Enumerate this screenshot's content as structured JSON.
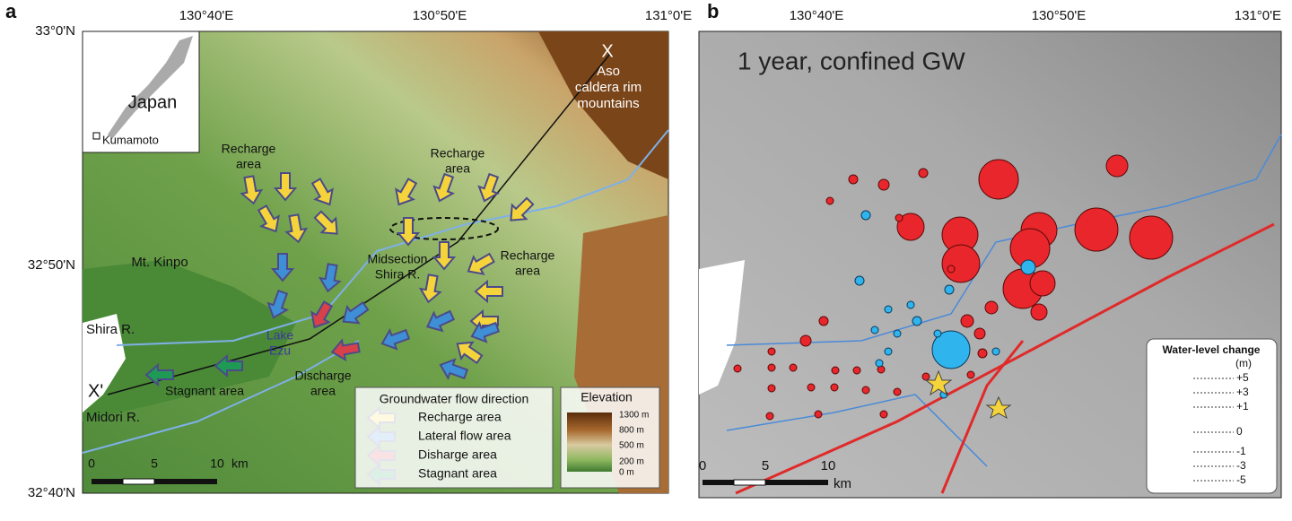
{
  "panel_a": {
    "label": "a",
    "lon_ticks": [
      "130°40'E",
      "130°50'E",
      "131°0'E"
    ],
    "lat_ticks": [
      "33°0'N",
      "32°50'N",
      "32°40'N"
    ],
    "inset": {
      "country": "Japan",
      "city": "Kumamoto"
    },
    "mountain_marker": "X",
    "aso": [
      "Aso",
      "caldera rim",
      "mountains"
    ],
    "recharge_1": [
      "Recharge",
      "area"
    ],
    "recharge_2": [
      "Recharge",
      "area"
    ],
    "recharge_3": [
      "Recharge",
      "area"
    ],
    "kinpo": "Mt. Kinpo",
    "midsection": [
      "Midsection",
      "Shira R."
    ],
    "shira": "Shira R.",
    "lake": [
      "Lake",
      "Ezu"
    ],
    "discharge": [
      "Discharge",
      "area"
    ],
    "section_end": "X'",
    "stagnant": "Stagnant area",
    "midori": "Midori R.",
    "legend": {
      "title": "Groundwater flow direction",
      "items": [
        "Recharge area",
        "Lateral flow area",
        "Disharge area",
        "Stagnant area"
      ]
    },
    "elevation": {
      "title": "Elevation",
      "ticks": [
        "1300 m",
        "800 m",
        "500 m",
        "200 m",
        "0 m"
      ]
    },
    "scale": {
      "ticks": [
        "0",
        "5",
        "10"
      ],
      "unit": "km"
    }
  },
  "panel_b": {
    "label": "b",
    "lon_ticks": [
      "130°40'E",
      "130°50'E",
      "131°0'E"
    ],
    "title": "1 year, confined GW",
    "scale": {
      "ticks": [
        "0",
        "5",
        "10"
      ],
      "unit": "km"
    },
    "legend": {
      "title": "Water-level change",
      "unit": "(m)",
      "ticks": [
        "+5",
        "+3",
        "+1",
        "0",
        "-1",
        "-3",
        "-5"
      ]
    }
  }
}
